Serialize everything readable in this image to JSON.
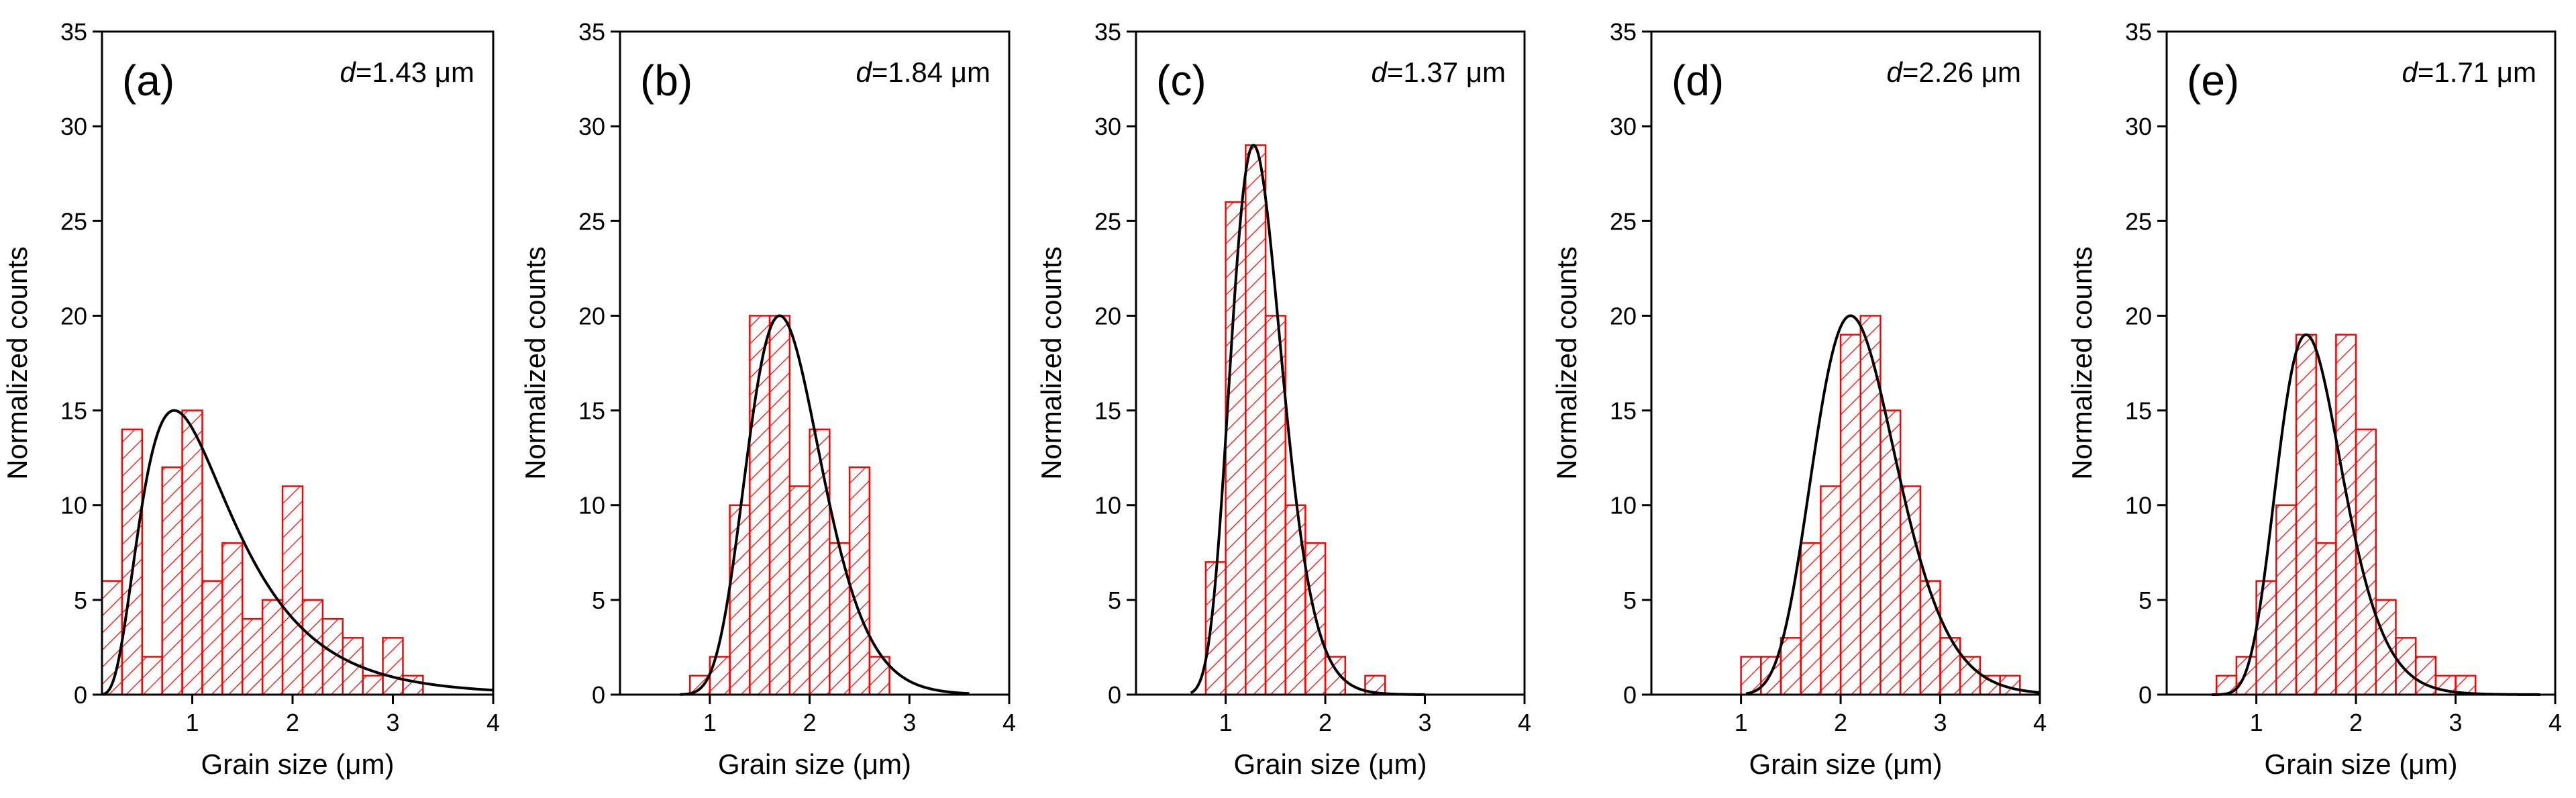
{
  "colors": {
    "bar_stroke": "#ff0000",
    "bar_hatch": "#ff0000",
    "fit_curve": "#000000",
    "axes": "#000000",
    "background": "#ffffff"
  },
  "chart_data": [
    {
      "type": "bar",
      "panel_label": "(a)",
      "annotation": {
        "symbol": "d",
        "text": "=1.43 μm"
      },
      "xlabel": "Grain size (μm)",
      "ylabel": "Normalized counts",
      "xlim": [
        0.1,
        4
      ],
      "ylim": [
        0,
        35
      ],
      "xticks": [
        1,
        2,
        3,
        4
      ],
      "yticks": [
        0,
        5,
        10,
        15,
        20,
        25,
        30,
        35
      ],
      "bin_width": 0.2,
      "bin_centers": [
        0.2,
        0.4,
        0.6,
        0.8,
        1.0,
        1.2,
        1.4,
        1.6,
        1.8,
        2.0,
        2.2,
        2.4,
        2.6,
        2.8,
        3.0,
        3.2
      ],
      "values": [
        6,
        14,
        2,
        12,
        15,
        6,
        8,
        4,
        5,
        11,
        5,
        4,
        3,
        1,
        3,
        1
      ],
      "fit": {
        "type": "lognormal",
        "x_mode": 0.82,
        "peak": 15,
        "sigma": 0.55,
        "x_range": [
          0.1,
          4
        ]
      }
    },
    {
      "type": "bar",
      "panel_label": "(b)",
      "annotation": {
        "symbol": "d",
        "text": "=1.84 μm"
      },
      "xlabel": "Grain size (μm)",
      "ylabel": "Normalized counts",
      "xlim": [
        0.1,
        4
      ],
      "ylim": [
        0,
        35
      ],
      "xticks": [
        1,
        2,
        3,
        4
      ],
      "yticks": [
        0,
        5,
        10,
        15,
        20,
        25,
        30,
        35
      ],
      "bin_width": 0.2,
      "bin_centers": [
        0.9,
        1.1,
        1.3,
        1.5,
        1.7,
        1.9,
        2.1,
        2.3,
        2.5,
        2.7
      ],
      "values": [
        1,
        2,
        10,
        20,
        20,
        11,
        14,
        8,
        12,
        2
      ],
      "fit": {
        "type": "lognormal",
        "x_mode": 1.7,
        "peak": 20,
        "sigma": 0.22,
        "x_range": [
          0.7,
          3.6
        ]
      }
    },
    {
      "type": "bar",
      "panel_label": "(c)",
      "annotation": {
        "symbol": "d",
        "text": "=1.37 μm"
      },
      "xlabel": "Grain size (μm)",
      "ylabel": "Normalized counts",
      "xlim": [
        0.1,
        4
      ],
      "ylim": [
        0,
        35
      ],
      "xticks": [
        1,
        2,
        3,
        4
      ],
      "yticks": [
        0,
        5,
        10,
        15,
        20,
        25,
        30,
        35
      ],
      "bin_width": 0.2,
      "bin_centers": [
        0.9,
        1.1,
        1.3,
        1.5,
        1.7,
        1.9,
        2.1,
        2.3,
        2.5
      ],
      "values": [
        7,
        26,
        29,
        20,
        10,
        8,
        2,
        0,
        1
      ],
      "fit": {
        "type": "lognormal",
        "x_mode": 1.28,
        "peak": 29,
        "sigma": 0.2,
        "x_range": [
          0.65,
          3.0
        ]
      }
    },
    {
      "type": "bar",
      "panel_label": "(d)",
      "annotation": {
        "symbol": "d",
        "text": "=2.26 μm"
      },
      "xlabel": "Grain size (μm)",
      "ylabel": "Normalized counts",
      "xlim": [
        0.1,
        4
      ],
      "ylim": [
        0,
        35
      ],
      "xticks": [
        1,
        2,
        3,
        4
      ],
      "yticks": [
        0,
        5,
        10,
        15,
        20,
        25,
        30,
        35
      ],
      "bin_width": 0.2,
      "bin_centers": [
        1.1,
        1.3,
        1.5,
        1.7,
        1.9,
        2.1,
        2.3,
        2.5,
        2.7,
        2.9,
        3.1,
        3.3,
        3.5,
        3.7
      ],
      "values": [
        2,
        2,
        3,
        8,
        11,
        19,
        20,
        15,
        11,
        6,
        3,
        2,
        1,
        1
      ],
      "fit": {
        "type": "lognormal",
        "x_mode": 2.1,
        "peak": 20,
        "sigma": 0.2,
        "x_range": [
          1.05,
          4.0
        ]
      }
    },
    {
      "type": "bar",
      "panel_label": "(e)",
      "annotation": {
        "symbol": "d",
        "text": "=1.71 μm"
      },
      "xlabel": "Grain size (μm)",
      "ylabel": "Normalized counts",
      "xlim": [
        0.1,
        4
      ],
      "ylim": [
        0,
        35
      ],
      "xticks": [
        1,
        2,
        3,
        4
      ],
      "yticks": [
        0,
        5,
        10,
        15,
        20,
        25,
        30,
        35
      ],
      "bin_width": 0.2,
      "bin_centers": [
        0.7,
        0.9,
        1.1,
        1.3,
        1.5,
        1.7,
        1.9,
        2.1,
        2.3,
        2.5,
        2.7,
        2.9,
        3.1
      ],
      "values": [
        1,
        2,
        6,
        10,
        19,
        8,
        19,
        14,
        5,
        3,
        2,
        1,
        1
      ],
      "fit": {
        "type": "lognormal",
        "x_mode": 1.5,
        "peak": 19,
        "sigma": 0.22,
        "x_range": [
          0.55,
          3.85
        ]
      }
    }
  ]
}
